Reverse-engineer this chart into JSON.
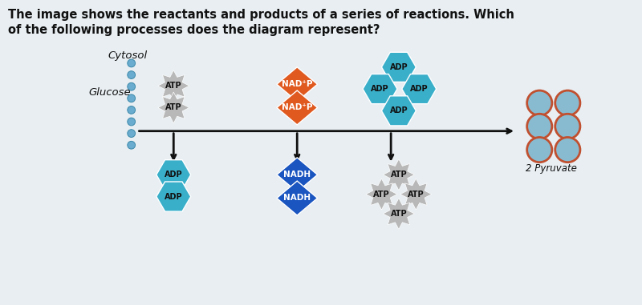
{
  "title_line1": "The image shows the reactants and products of a series of reactions. Which",
  "title_line2": "of the following processes does the diagram represent?",
  "bg_color": "#e8eef2",
  "title_fontsize": 10.5,
  "arrow_color": "#111111",
  "cytosol_label": "Cytosol",
  "glucose_label": "Glucose",
  "pyruvate_label": "2 Pyruvate",
  "atp_color_gray": "#b8b8b8",
  "adp_color_teal": "#3aafca",
  "nadp_color_orange": "#e05a20",
  "nadh_color_blue": "#1a55c0",
  "left_bar_color": "#6aaccf",
  "pyruvate_circle_fill": "#88bbd0",
  "pyruvate_circle_edge": "#c05030",
  "fig_w": 8.0,
  "fig_h": 3.81,
  "dpi": 100
}
